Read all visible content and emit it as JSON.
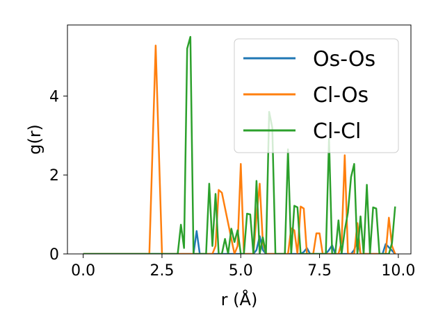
{
  "chart_data": {
    "type": "line",
    "title": "",
    "xlabel": "r (Å)",
    "ylabel": "g(r)",
    "xlim": [
      -0.5,
      10.4
    ],
    "ylim": [
      0,
      5.8
    ],
    "xticks": [
      0.0,
      2.5,
      5.0,
      7.5,
      10.0
    ],
    "xtick_labels": [
      "0.0",
      "2.5",
      "5.0",
      "7.5",
      "10.0"
    ],
    "yticks": [
      0,
      2,
      4
    ],
    "ytick_labels": [
      "0",
      "2",
      "4"
    ],
    "grid": false,
    "legend_position": "top-right",
    "series": [
      {
        "name": "Os-Os",
        "color": "#1f77b4",
        "x": [
          0.0,
          3.4,
          3.5,
          3.6,
          3.7,
          5.4,
          5.5,
          5.6,
          5.7,
          5.8,
          6.9,
          7.0,
          7.1,
          7.2,
          7.7,
          7.8,
          7.9,
          8.0,
          8.5,
          8.6,
          8.7,
          8.8,
          9.5,
          9.6,
          9.9
        ],
        "y": [
          0.0,
          0.0,
          0.0,
          0.58,
          0.0,
          0.0,
          0.1,
          0.45,
          0.1,
          0.0,
          0.0,
          0.05,
          0.15,
          0.0,
          0.0,
          0.1,
          0.22,
          0.0,
          0.0,
          0.1,
          0.35,
          0.0,
          0.0,
          0.25,
          0.0
        ]
      },
      {
        "name": "Cl-Os",
        "color": "#ff7f0e",
        "x": [
          0.0,
          2.1,
          2.3,
          2.5,
          4.1,
          4.2,
          4.3,
          4.4,
          4.8,
          4.9,
          5.0,
          5.1,
          5.4,
          5.5,
          5.6,
          5.7,
          5.8,
          6.5,
          6.6,
          6.7,
          6.8,
          6.9,
          7.0,
          7.1,
          7.2,
          7.3,
          7.4,
          7.5,
          7.6,
          8.1,
          8.2,
          8.3,
          8.4,
          8.6,
          8.7,
          8.8,
          9.6,
          9.7,
          9.8,
          9.9
        ],
        "y": [
          0.0,
          0.0,
          5.28,
          0.0,
          0.0,
          0.2,
          1.62,
          1.55,
          0.0,
          0.2,
          2.28,
          0.0,
          0.0,
          0.95,
          1.78,
          0.3,
          0.0,
          0.0,
          0.65,
          0.6,
          0.0,
          1.2,
          1.15,
          0.0,
          0.0,
          0.0,
          0.52,
          0.52,
          0.0,
          0.0,
          0.3,
          2.5,
          0.0,
          0.0,
          0.78,
          0.0,
          0.0,
          0.92,
          0.2,
          0.0
        ]
      },
      {
        "name": "Cl-Cl",
        "color": "#2ca02c",
        "x": [
          0.0,
          3.0,
          3.1,
          3.2,
          3.3,
          3.4,
          3.5,
          3.6,
          3.7,
          3.8,
          3.9,
          4.0,
          4.1,
          4.2,
          4.3,
          4.4,
          4.5,
          4.6,
          4.7,
          4.8,
          4.9,
          5.0,
          5.1,
          5.2,
          5.3,
          5.4,
          5.5,
          5.6,
          5.7,
          5.8,
          5.9,
          6.0,
          6.1,
          6.2,
          6.3,
          6.4,
          6.5,
          6.6,
          6.7,
          6.8,
          6.9,
          7.0,
          7.1,
          7.2,
          7.3,
          7.4,
          7.5,
          7.6,
          7.7,
          7.8,
          7.9,
          8.0,
          8.1,
          8.2,
          8.3,
          8.4,
          8.5,
          8.6,
          8.7,
          8.8,
          8.9,
          9.0,
          9.1,
          9.2,
          9.3,
          9.4,
          9.5,
          9.6,
          9.7,
          9.8,
          9.9
        ],
        "y": [
          0.0,
          0.0,
          0.74,
          0.15,
          5.2,
          5.5,
          0.0,
          0.0,
          0.0,
          0.0,
          0.0,
          1.78,
          0.2,
          1.52,
          0.0,
          0.0,
          0.38,
          0.0,
          0.64,
          0.3,
          0.6,
          0.0,
          0.0,
          1.02,
          1.0,
          0.0,
          1.85,
          0.0,
          0.42,
          0.0,
          3.6,
          3.2,
          0.0,
          0.0,
          0.0,
          0.0,
          2.65,
          0.0,
          1.22,
          1.18,
          0.0,
          0.0,
          0.0,
          0.0,
          0.0,
          0.0,
          0.0,
          0.0,
          0.0,
          2.92,
          0.0,
          0.0,
          0.85,
          0.0,
          0.6,
          1.05,
          1.95,
          2.28,
          0.0,
          0.95,
          0.0,
          1.75,
          0.0,
          1.18,
          1.15,
          0.0,
          0.0,
          0.0,
          0.0,
          0.28,
          1.2
        ]
      }
    ]
  }
}
